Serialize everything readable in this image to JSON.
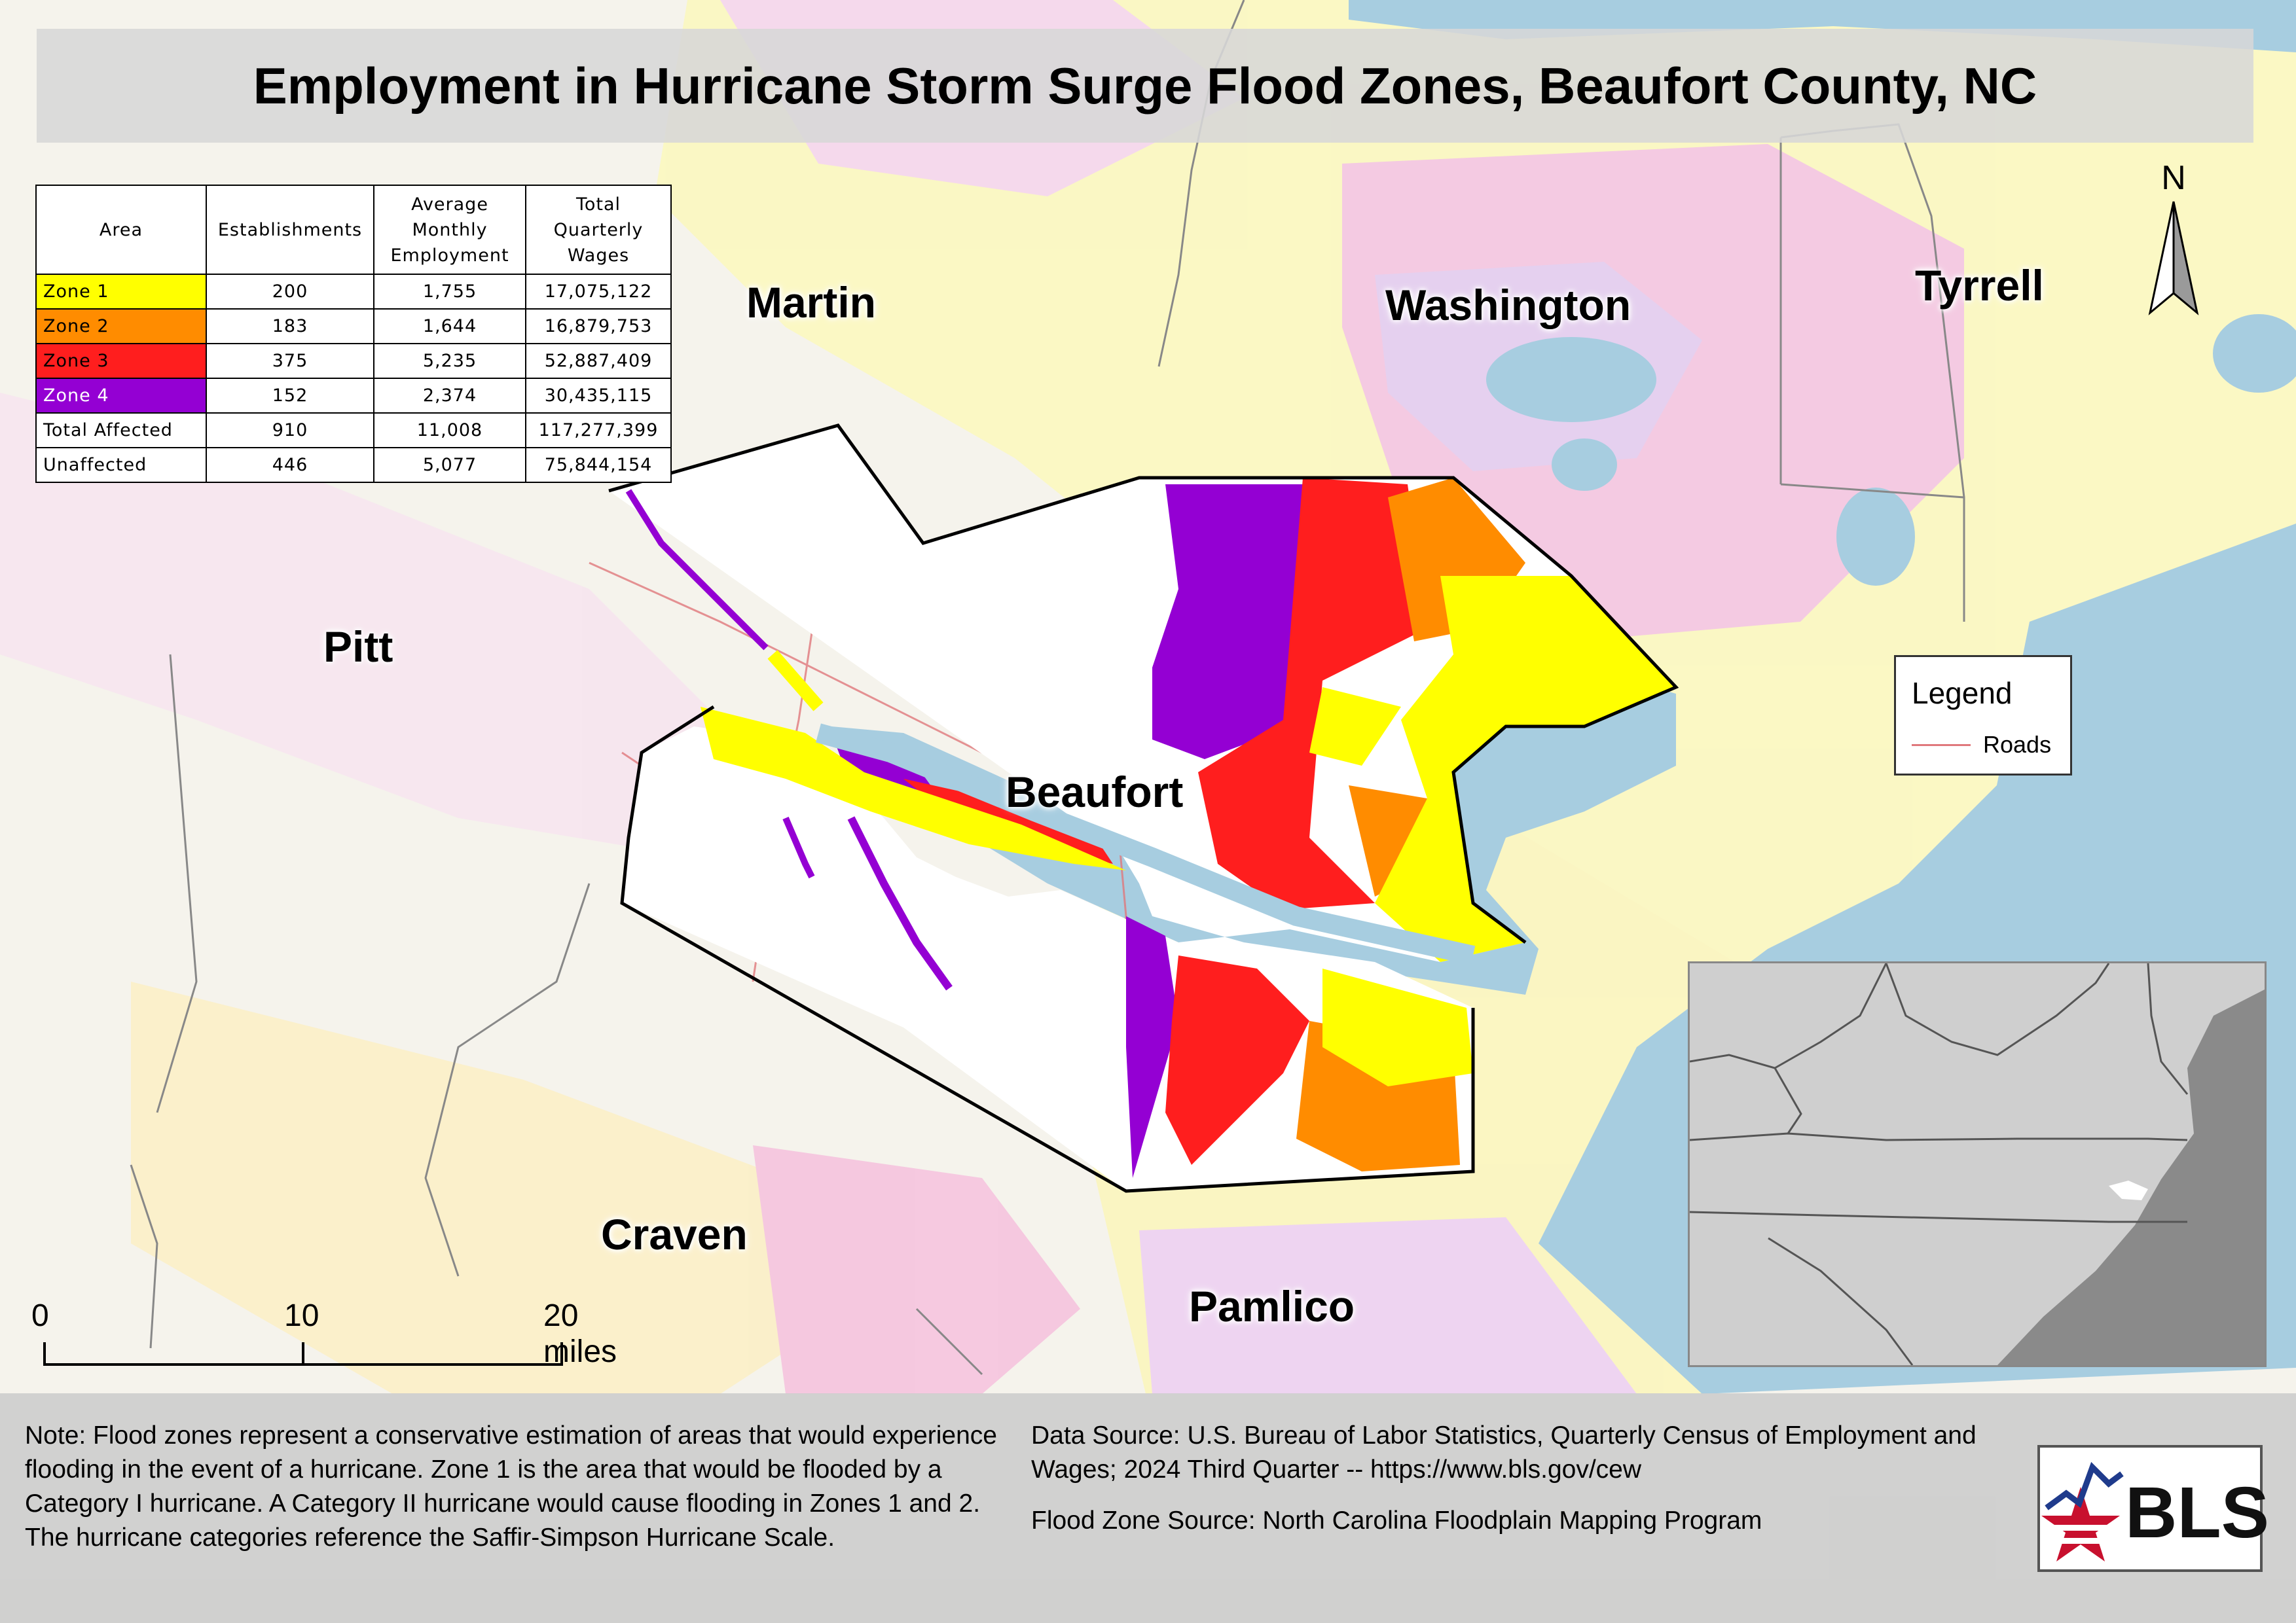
{
  "title": "Employment in Hurricane Storm Surge Flood Zones, Beaufort County, NC",
  "table": {
    "headers": [
      "Area",
      "Establishments",
      "Average Monthly Employment",
      "Total Quarterly Wages"
    ],
    "rows": [
      {
        "area": "Zone 1",
        "establishments": "200",
        "employment": "1,755",
        "wages": "17,075,122",
        "color": "#ffff00"
      },
      {
        "area": "Zone 2",
        "establishments": "183",
        "employment": "1,644",
        "wages": "16,879,753",
        "color": "#ff8c00"
      },
      {
        "area": "Zone 3",
        "establishments": "375",
        "employment": "5,235",
        "wages": "52,887,409",
        "color": "#ff1e1e"
      },
      {
        "area": "Zone 4",
        "establishments": "152",
        "employment": "2,374",
        "wages": "30,435,115",
        "color": "#9400d3"
      },
      {
        "area": "Total Affected",
        "establishments": "910",
        "employment": "11,008",
        "wages": "117,277,399",
        "color": "#ffffff"
      },
      {
        "area": "Unaffected",
        "establishments": "446",
        "employment": "5,077",
        "wages": "75,844,154",
        "color": "#ffffff"
      }
    ]
  },
  "counties": {
    "martin": "Martin",
    "washington": "Washington",
    "tyrrell": "Tyrrell",
    "pitt": "Pitt",
    "beaufort": "Beaufort",
    "craven": "Craven",
    "pamlico": "Pamlico"
  },
  "legend": {
    "title": "Legend",
    "roads_label": "Roads",
    "roads_color": "#e0787c"
  },
  "north_arrow": "N",
  "scale_bar": {
    "label_0": "0",
    "label_10": "10",
    "label_20": "20 miles"
  },
  "note": "Note: Flood zones represent a conservative estimation of areas that would experience flooding in the event of a hurricane. Zone 1 is the area that would be flooded by a Category I hurricane. A Category II hurricane would cause flooding in Zones 1 and 2. The hurricane categories reference the Saffir-Simpson Hurricane Scale.",
  "data_source": "Data Source: U.S. Bureau of Labor Statistics, Quarterly Census of Employment and Wages; 2024 Third Quarter -- https://www.bls.gov/cew",
  "flood_zone_source": "Flood Zone Source: North Carolina Floodplain Mapping Program",
  "logo_text": "BLS",
  "colors": {
    "water": "#a7cde0",
    "zone1": "#ffff00",
    "zone2": "#ff8c00",
    "zone3": "#ff1e1e",
    "zone4": "#9400d3",
    "land": "#f4f2e9",
    "flood_pale_yellow": "#fbf7b8",
    "flood_pale_pink": "#f7c6df",
    "flood_pale_purple": "#dcc2ee",
    "county_line": "#000000",
    "river_blue": "#8ec0d8"
  }
}
